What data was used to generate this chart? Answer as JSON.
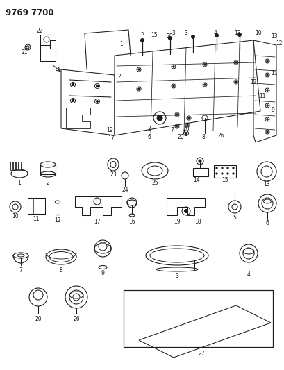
{
  "title": "9769 7700",
  "background_color": "#ffffff",
  "fig_width": 4.1,
  "fig_height": 5.33,
  "dpi": 100
}
